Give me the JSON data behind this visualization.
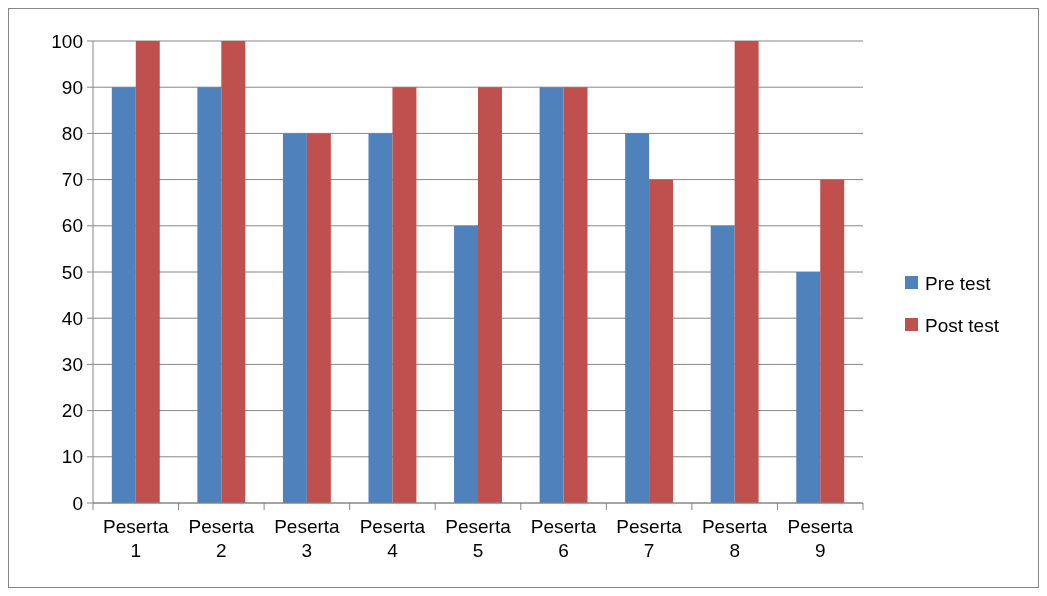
{
  "chart_data": {
    "type": "bar",
    "categories": [
      "Peserta 1",
      "Peserta 2",
      "Peserta 3",
      "Peserta 4",
      "Peserta 5",
      "Peserta 6",
      "Peserta 7",
      "Peserta 8",
      "Peserta 9"
    ],
    "series": [
      {
        "name": "Pre test",
        "color": "#4f81bd",
        "values": [
          90,
          90,
          80,
          80,
          60,
          90,
          80,
          60,
          50
        ]
      },
      {
        "name": "Post test",
        "color": "#c0504d",
        "values": [
          100,
          100,
          80,
          90,
          90,
          90,
          70,
          100,
          70
        ]
      }
    ],
    "ylim": [
      0,
      100
    ],
    "yticks": [
      0,
      10,
      20,
      30,
      40,
      50,
      60,
      70,
      80,
      90,
      100
    ],
    "grid": "y",
    "legend": "right"
  }
}
